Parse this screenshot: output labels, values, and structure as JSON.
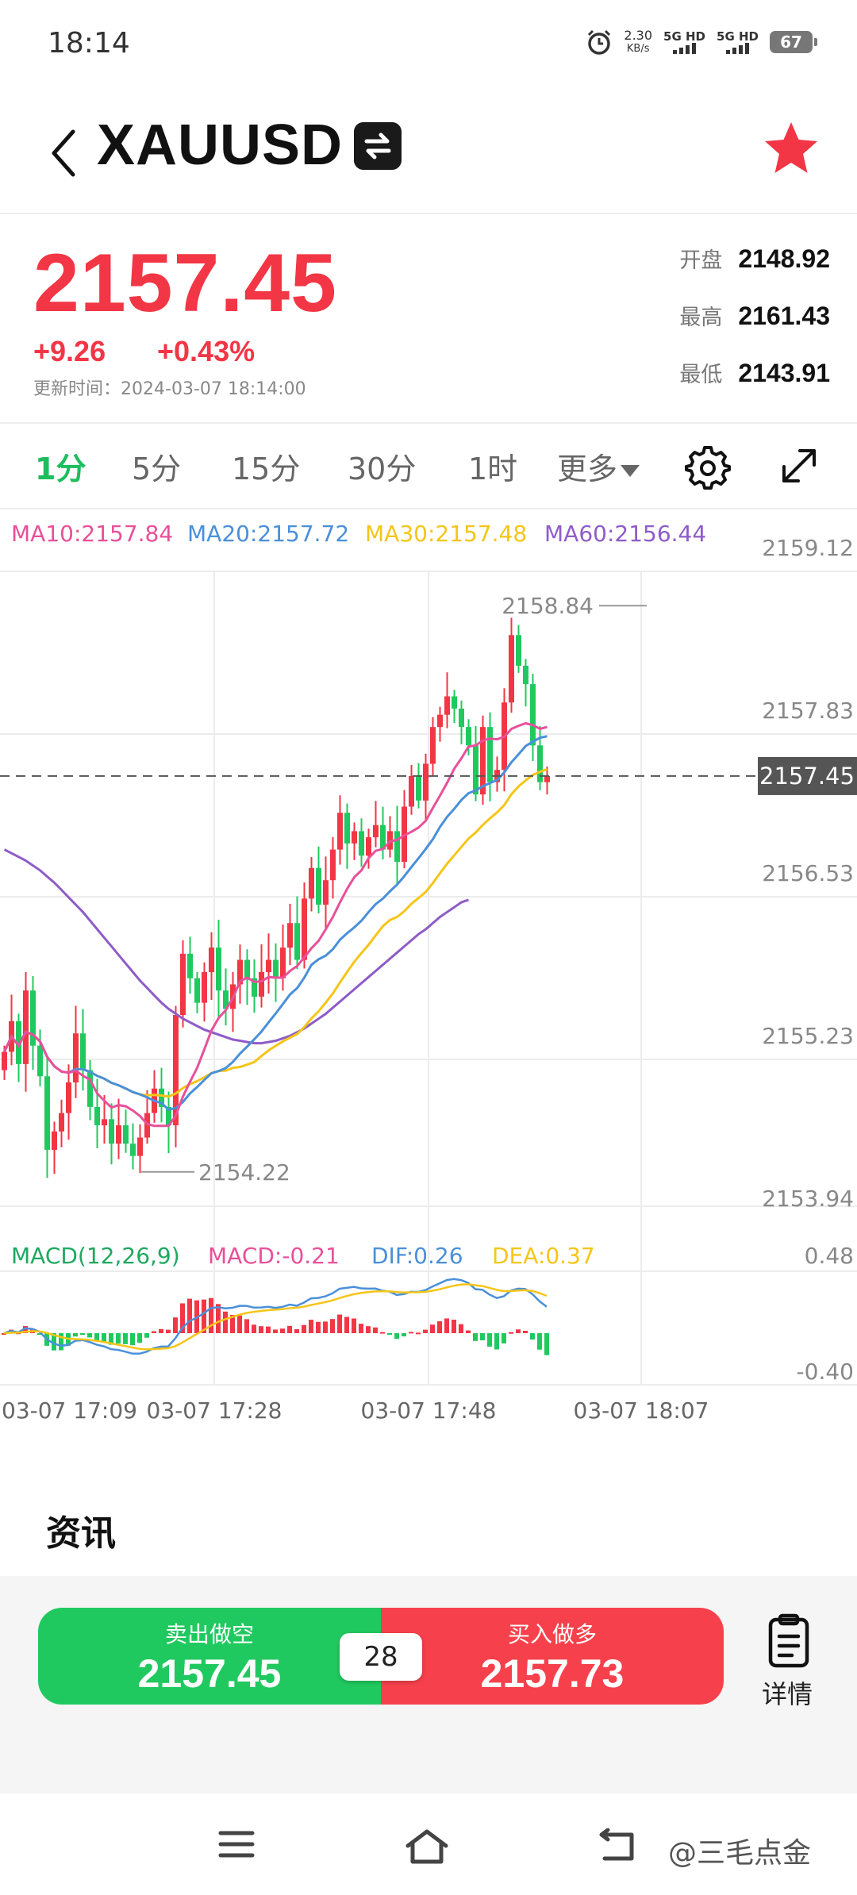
{
  "status_bar": {
    "time": "18:14",
    "net_speed_value": "2.30",
    "net_speed_unit": "KB/s",
    "net1": "5G HD",
    "net2": "5G HD",
    "battery": "67"
  },
  "header": {
    "symbol": "XAUUSD"
  },
  "quote": {
    "price": "2157.45",
    "change": "+9.26",
    "change_pct": "+0.43%",
    "update_label": "更新时间：",
    "update_time": "2024-03-07 18:14:00",
    "open_label": "开盘",
    "open": "2148.92",
    "high_label": "最高",
    "high": "2161.43",
    "low_label": "最低",
    "low": "2143.91"
  },
  "timeframes": {
    "tabs": [
      "1分",
      "5分",
      "15分",
      "30分",
      "1时"
    ],
    "active_index": 0,
    "more_label": "更多"
  },
  "ma_legend": {
    "ma10": "MA10:2157.84",
    "ma20": "MA20:2157.72",
    "ma30": "MA30:2157.48",
    "ma60": "MA60:2156.44",
    "colors": {
      "ma10": "#e8509a",
      "ma20": "#4a90d9",
      "ma30": "#f5c518",
      "ma60": "#8e5cc8"
    }
  },
  "macd_legend": {
    "title": "MACD(12,26,9)",
    "macd": "MACD:-0.21",
    "dif": "DIF:0.26",
    "dea": "DEA:0.37",
    "colors": {
      "title": "#1fa860",
      "macd": "#e8509a",
      "dif": "#4a90d9",
      "dea": "#f5c518"
    }
  },
  "chart_data": {
    "type": "candlestick",
    "y_ticks": [
      "2159.12",
      "2157.83",
      "2156.53",
      "2155.23",
      "2153.94"
    ],
    "ylim": [
      2153.94,
      2159.12
    ],
    "current_price_label": "2157.45",
    "max_label": "2158.84",
    "min_label": "2154.22",
    "macd_ticks": [
      "0.48",
      "-0.40"
    ],
    "macd_ylim": [
      -0.4,
      0.48
    ],
    "x_labels": [
      "03-07 17:09",
      "03-07 17:28",
      "03-07 17:48",
      "03-07 18:07"
    ],
    "up_color": "#f23645",
    "down_color": "#20c95f",
    "closes": [
      2155.2,
      2155.45,
      2155.1,
      2155.7,
      2155.25,
      2155.0,
      2154.4,
      2154.55,
      2154.7,
      2154.95,
      2155.35,
      2155.05,
      2154.75,
      2154.6,
      2154.65,
      2154.45,
      2154.6,
      2154.45,
      2154.35,
      2154.5,
      2154.7,
      2154.9,
      2154.75,
      2154.6,
      2155.5,
      2156.0,
      2155.8,
      2155.6,
      2155.85,
      2156.05,
      2155.7,
      2155.55,
      2155.75,
      2155.95,
      2155.8,
      2155.65,
      2155.85,
      2155.95,
      2155.8,
      2156.05,
      2156.25,
      2155.95,
      2156.45,
      2156.7,
      2156.4,
      2156.6,
      2156.85,
      2157.15,
      2156.9,
      2157.0,
      2156.8,
      2156.95,
      2157.05,
      2156.85,
      2157.0,
      2156.75,
      2157.2,
      2157.45,
      2157.25,
      2157.55,
      2157.85,
      2157.95,
      2158.1,
      2158.0,
      2157.85,
      2157.7,
      2157.3,
      2157.85,
      2157.4,
      2157.5,
      2158.05,
      2158.6,
      2158.35,
      2158.2,
      2157.7,
      2157.4,
      2157.45
    ],
    "ma60": [
      2156.85,
      2156.82,
      2156.79,
      2156.76,
      2156.72,
      2156.68,
      2156.63,
      2156.58,
      2156.52,
      2156.46,
      2156.4,
      2156.34,
      2156.27,
      2156.2,
      2156.13,
      2156.06,
      2155.99,
      2155.92,
      2155.85,
      2155.78,
      2155.72,
      2155.66,
      2155.6,
      2155.55,
      2155.51,
      2155.47,
      2155.44,
      2155.41,
      2155.38,
      2155.36,
      2155.34,
      2155.32,
      2155.3,
      2155.29,
      2155.28,
      2155.27,
      2155.27,
      2155.28,
      2155.29,
      2155.31,
      2155.33,
      2155.36,
      2155.39,
      2155.43,
      2155.47,
      2155.51,
      2155.56,
      2155.61,
      2155.66,
      2155.71,
      2155.76,
      2155.81,
      2155.86,
      2155.91,
      2155.96,
      2156.01,
      2156.06,
      2156.11,
      2156.16,
      2156.2,
      2156.25,
      2156.3,
      2156.34,
      2156.38,
      2156.42,
      2156.44
    ]
  },
  "news": {
    "title": "资讯"
  },
  "trade": {
    "sell_label": "卖出做空",
    "sell_price": "2157.45",
    "buy_label": "买入做多",
    "buy_price": "2157.73",
    "spread": "28",
    "detail_label": "详情"
  },
  "watermark": "@三毛点金"
}
